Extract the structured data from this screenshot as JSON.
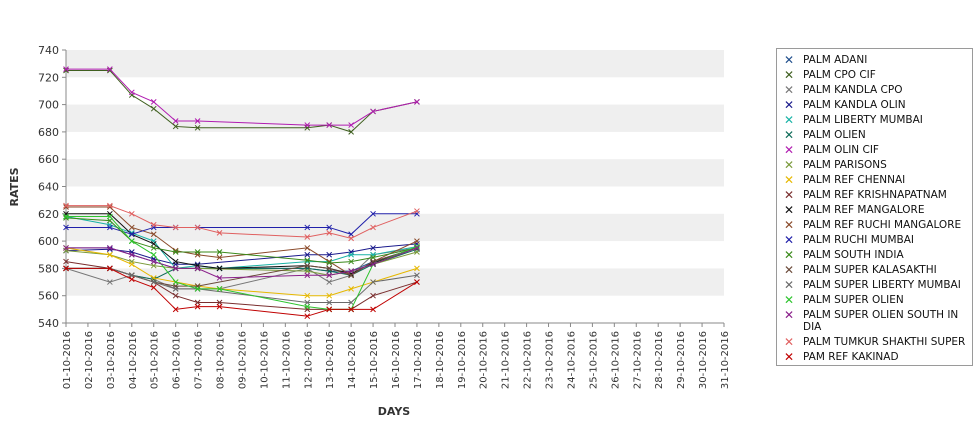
{
  "chart_data": {
    "type": "line",
    "xlabel": "DAYS",
    "ylabel": "RATES",
    "ylim": [
      540,
      740
    ],
    "yticks": [
      540,
      560,
      580,
      600,
      620,
      640,
      660,
      680,
      700,
      720,
      740
    ],
    "grid": "alternating horizontal bands",
    "legend_position": "right",
    "categories": [
      "01-10-2016",
      "02-10-2016",
      "03-10-2016",
      "04-10-2016",
      "05-10-2016",
      "06-10-2016",
      "07-10-2016",
      "08-10-2016",
      "09-10-2016",
      "10-10-2016",
      "11-10-2016",
      "12-10-2016",
      "13-10-2016",
      "14-10-2016",
      "15-10-2016",
      "16-10-2016",
      "17-10-2016",
      "18-10-2016",
      "19-10-2016",
      "20-10-2016",
      "21-10-2016",
      "22-10-2016",
      "23-10-2016",
      "24-10-2016",
      "25-10-2016",
      "26-10-2016",
      "27-10-2016",
      "28-10-2016",
      "29-10-2016",
      "30-10-2016",
      "31-10-2016"
    ],
    "series": [
      {
        "name": "PALM ADANI",
        "color": "#1f4e8c",
        "points": [
          [
            0,
            595
          ],
          [
            2,
            595
          ],
          [
            3,
            590
          ],
          [
            4,
            585
          ],
          [
            5,
            580
          ],
          [
            6,
            580
          ],
          [
            7,
            580
          ],
          [
            11,
            580
          ],
          [
            12,
            578
          ],
          [
            13,
            578
          ],
          [
            14,
            585
          ],
          [
            16,
            595
          ]
        ]
      },
      {
        "name": "PALM CPO CIF",
        "color": "#3f5f1f",
        "points": [
          [
            0,
            725
          ],
          [
            2,
            725
          ],
          [
            3,
            707
          ],
          [
            4,
            697
          ],
          [
            5,
            684
          ],
          [
            6,
            683
          ],
          [
            11,
            683
          ],
          [
            12,
            685
          ],
          [
            13,
            680
          ],
          [
            14,
            695
          ],
          [
            16,
            702
          ]
        ]
      },
      {
        "name": "PALM KANDLA CPO",
        "color": "#777777",
        "points": [
          [
            0,
            580
          ],
          [
            2,
            570
          ],
          [
            3,
            575
          ],
          [
            4,
            572
          ],
          [
            5,
            565
          ],
          [
            6,
            565
          ],
          [
            7,
            565
          ],
          [
            11,
            580
          ],
          [
            12,
            570
          ],
          [
            13,
            575
          ],
          [
            14,
            590
          ],
          [
            16,
            595
          ]
        ]
      },
      {
        "name": "PALM KANDLA OLIN",
        "color": "#1a1a8c",
        "points": [
          [
            0,
            593
          ],
          [
            2,
            594
          ],
          [
            3,
            592
          ],
          [
            4,
            587
          ],
          [
            5,
            583
          ],
          [
            6,
            583
          ],
          [
            11,
            590
          ],
          [
            12,
            590
          ],
          [
            13,
            592
          ],
          [
            14,
            595
          ],
          [
            16,
            598
          ]
        ]
      },
      {
        "name": "PALM LIBERTY MUMBAI",
        "color": "#19b3a6",
        "points": [
          [
            0,
            618
          ],
          [
            2,
            612
          ],
          [
            3,
            606
          ],
          [
            4,
            600
          ],
          [
            5,
            580
          ],
          [
            6,
            582
          ],
          [
            7,
            580
          ],
          [
            11,
            585
          ],
          [
            12,
            585
          ],
          [
            13,
            590
          ],
          [
            14,
            590
          ],
          [
            16,
            596
          ]
        ]
      },
      {
        "name": "PALM OLIEN",
        "color": "#0e6b58",
        "points": [
          [
            0,
            580
          ],
          [
            2,
            580
          ],
          [
            3,
            575
          ],
          [
            4,
            572
          ],
          [
            5,
            580
          ],
          [
            6,
            580
          ],
          [
            7,
            580
          ],
          [
            11,
            580
          ],
          [
            12,
            578
          ],
          [
            13,
            575
          ],
          [
            14,
            583
          ],
          [
            16,
            594
          ]
        ]
      },
      {
        "name": "PALM OLIN CIF",
        "color": "#b01cb0",
        "points": [
          [
            0,
            726
          ],
          [
            2,
            726
          ],
          [
            3,
            709
          ],
          [
            4,
            702
          ],
          [
            5,
            688
          ],
          [
            6,
            688
          ],
          [
            11,
            685
          ],
          [
            12,
            685
          ],
          [
            13,
            685
          ],
          [
            14,
            695
          ],
          [
            16,
            702
          ]
        ]
      },
      {
        "name": "PALM PARISONS",
        "color": "#7a9a3a",
        "points": [
          [
            0,
            593
          ],
          [
            2,
            590
          ],
          [
            3,
            585
          ],
          [
            4,
            582
          ],
          [
            5,
            580
          ],
          [
            6,
            580
          ],
          [
            11,
            578
          ],
          [
            12,
            575
          ],
          [
            13,
            578
          ],
          [
            14,
            583
          ],
          [
            16,
            592
          ]
        ]
      },
      {
        "name": "PALM REF CHENNAI",
        "color": "#e6b800",
        "points": [
          [
            0,
            595
          ],
          [
            2,
            590
          ],
          [
            3,
            583
          ],
          [
            4,
            573
          ],
          [
            5,
            570
          ],
          [
            6,
            567
          ],
          [
            7,
            565
          ],
          [
            11,
            560
          ],
          [
            12,
            560
          ],
          [
            13,
            565
          ],
          [
            14,
            570
          ],
          [
            16,
            580
          ]
        ]
      },
      {
        "name": "PALM REF KRISHNAPATNAM",
        "color": "#7a2e2e",
        "points": [
          [
            0,
            585
          ],
          [
            2,
            580
          ],
          [
            3,
            575
          ],
          [
            4,
            570
          ],
          [
            5,
            560
          ],
          [
            6,
            555
          ],
          [
            7,
            555
          ],
          [
            11,
            550
          ],
          [
            12,
            550
          ],
          [
            13,
            550
          ],
          [
            14,
            560
          ],
          [
            16,
            570
          ]
        ]
      },
      {
        "name": "PALM REF MANGALORE",
        "color": "#111111",
        "points": [
          [
            0,
            620
          ],
          [
            2,
            620
          ],
          [
            3,
            605
          ],
          [
            4,
            598
          ],
          [
            5,
            585
          ],
          [
            6,
            582
          ],
          [
            7,
            580
          ],
          [
            11,
            582
          ],
          [
            12,
            580
          ],
          [
            13,
            576
          ],
          [
            14,
            584
          ],
          [
            16,
            595
          ]
        ]
      },
      {
        "name": "PALM REF RUCHI MANGALORE",
        "color": "#8a4a2a",
        "points": [
          [
            0,
            625
          ],
          [
            2,
            625
          ],
          [
            3,
            610
          ],
          [
            4,
            605
          ],
          [
            5,
            593
          ],
          [
            6,
            590
          ],
          [
            7,
            588
          ],
          [
            11,
            595
          ],
          [
            12,
            585
          ],
          [
            13,
            575
          ],
          [
            14,
            585
          ],
          [
            16,
            600
          ]
        ]
      },
      {
        "name": "PALM RUCHI MUMBAI",
        "color": "#2020aa",
        "points": [
          [
            0,
            610
          ],
          [
            2,
            610
          ],
          [
            3,
            605
          ],
          [
            4,
            610
          ],
          [
            5,
            610
          ],
          [
            6,
            610
          ],
          [
            11,
            610
          ],
          [
            12,
            610
          ],
          [
            13,
            605
          ],
          [
            14,
            620
          ],
          [
            16,
            620
          ]
        ]
      },
      {
        "name": "PALM SOUTH INDIA",
        "color": "#3a8a1a",
        "points": [
          [
            0,
            617
          ],
          [
            2,
            615
          ],
          [
            3,
            600
          ],
          [
            4,
            595
          ],
          [
            5,
            592
          ],
          [
            6,
            592
          ],
          [
            7,
            592
          ],
          [
            11,
            586
          ],
          [
            12,
            584
          ],
          [
            13,
            585
          ],
          [
            14,
            588
          ],
          [
            16,
            595
          ]
        ]
      },
      {
        "name": "PALM SUPER KALASAKTHI",
        "color": "#6b4a3a",
        "points": [
          [
            0,
            580
          ],
          [
            2,
            580
          ],
          [
            3,
            575
          ],
          [
            4,
            570
          ],
          [
            5,
            567
          ],
          [
            6,
            567
          ],
          [
            11,
            582
          ],
          [
            12,
            580
          ],
          [
            13,
            575
          ],
          [
            14,
            585
          ],
          [
            16,
            595
          ]
        ]
      },
      {
        "name": "PALM SUPER LIBERTY MUMBAI",
        "color": "#6a6a6a",
        "points": [
          [
            0,
            580
          ],
          [
            2,
            580
          ],
          [
            3,
            575
          ],
          [
            4,
            570
          ],
          [
            5,
            565
          ],
          [
            6,
            565
          ],
          [
            11,
            555
          ],
          [
            12,
            555
          ],
          [
            13,
            555
          ],
          [
            14,
            570
          ],
          [
            16,
            575
          ]
        ]
      },
      {
        "name": "PALM SUPER OLIEN",
        "color": "#2ec42e",
        "points": [
          [
            0,
            618
          ],
          [
            2,
            618
          ],
          [
            3,
            600
          ],
          [
            4,
            590
          ],
          [
            5,
            570
          ],
          [
            6,
            565
          ],
          [
            7,
            565
          ],
          [
            11,
            552
          ],
          [
            12,
            550
          ],
          [
            13,
            550
          ],
          [
            14,
            583
          ],
          [
            16,
            596
          ]
        ]
      },
      {
        "name": "PALM SUPER OLIEN SOUTH IN DIA",
        "color": "#8a1f8a",
        "points": [
          [
            0,
            595
          ],
          [
            2,
            595
          ],
          [
            3,
            590
          ],
          [
            4,
            585
          ],
          [
            5,
            580
          ],
          [
            6,
            580
          ],
          [
            7,
            573
          ],
          [
            11,
            575
          ],
          [
            12,
            575
          ],
          [
            13,
            578
          ],
          [
            14,
            583
          ],
          [
            16,
            595
          ]
        ]
      },
      {
        "name": "PALM TUMKUR SHAKTHI SUPER",
        "color": "#e06060",
        "points": [
          [
            0,
            626
          ],
          [
            2,
            626
          ],
          [
            3,
            620
          ],
          [
            4,
            612
          ],
          [
            5,
            610
          ],
          [
            6,
            610
          ],
          [
            7,
            606
          ],
          [
            11,
            603
          ],
          [
            12,
            606
          ],
          [
            13,
            602
          ],
          [
            14,
            610
          ],
          [
            16,
            622
          ]
        ]
      },
      {
        "name": "PAM REF KAKINAD",
        "color": "#c00000",
        "points": [
          [
            0,
            580
          ],
          [
            2,
            580
          ],
          [
            3,
            572
          ],
          [
            4,
            566
          ],
          [
            5,
            550
          ],
          [
            6,
            552
          ],
          [
            7,
            552
          ],
          [
            11,
            545
          ],
          [
            12,
            550
          ],
          [
            13,
            550
          ],
          [
            14,
            550
          ],
          [
            16,
            570
          ]
        ]
      }
    ]
  }
}
